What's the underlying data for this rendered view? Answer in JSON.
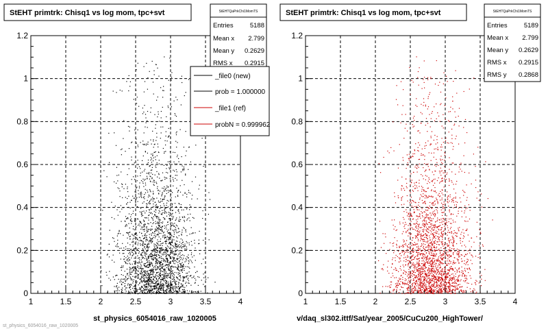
{
  "colors": {
    "background": "#ffffff",
    "frame": "#000000",
    "grid": "#000000",
    "series_new": "#000000",
    "series_ref": "#cc0000"
  },
  "footer_text": "st_physics_6054016_raw_1020005",
  "chart_data": [
    {
      "type": "scatter",
      "title": "StEHT primtrk: Chisq1 vs log mom, tpc+svt",
      "xlabel": "st_physics_6054016_raw_1020005",
      "ylabel": "",
      "xlim": [
        1,
        4
      ],
      "ylim": [
        0,
        1.2
      ],
      "x_ticks": [
        "1",
        "1.5",
        "2",
        "2.5",
        "3",
        "3.5",
        "4"
      ],
      "y_ticks": [
        "0",
        "0.2",
        "0.4",
        "0.6",
        "0.8",
        "1",
        "1.2"
      ],
      "grid": true,
      "stats": {
        "name": "StEHTQaPrkChi1MomTS",
        "rows": [
          {
            "label": "Entries",
            "value": "5188"
          },
          {
            "label": "Mean x",
            "value": "2.799"
          },
          {
            "label": "Mean y",
            "value": "0.2629"
          },
          {
            "label": "RMS x",
            "value": "0.2915"
          }
        ]
      },
      "legend": {
        "position": "top-right",
        "entries": [
          {
            "text": "_file0 (new)",
            "color": "#000000"
          },
          {
            "text": "prob = 1.000000",
            "color": "#000000"
          },
          {
            "text": "_file1 (ref)",
            "color": "#cc0000"
          },
          {
            "text": "probN = 0.999962",
            "color": "#cc0000"
          }
        ]
      },
      "series": [
        {
          "name": "_file0 (new)",
          "color": "#000000",
          "entries": 5188,
          "mean_x": 2.799,
          "mean_y": 0.2629,
          "rms_x": 0.2915,
          "rms_y": 0.2868,
          "x_range": [
            2.0,
            3.75
          ],
          "y_range": [
            0,
            1.2
          ]
        }
      ]
    },
    {
      "type": "scatter",
      "title": "StEHT primtrk: Chisq1 vs log mom, tpc+svt",
      "xlabel": "v/daq_sl302.ittf/Sat/year_2005/CuCu200_HighTower/",
      "ylabel": "",
      "xlim": [
        1,
        4
      ],
      "ylim": [
        0,
        1.2
      ],
      "x_ticks": [
        "1",
        "1.5",
        "2",
        "2.5",
        "3",
        "3.5",
        "4"
      ],
      "y_ticks": [
        "0",
        "0.2",
        "0.4",
        "0.6",
        "0.8",
        "1",
        "1.2"
      ],
      "grid": true,
      "stats": {
        "name": "StEHTQaPrkChi1MomTS",
        "rows": [
          {
            "label": "Entries",
            "value": "5189"
          },
          {
            "label": "Mean x",
            "value": "2.799"
          },
          {
            "label": "Mean y",
            "value": "0.2629"
          },
          {
            "label": "RMS x",
            "value": "0.2915"
          },
          {
            "label": "RMS y",
            "value": "0.2868"
          }
        ]
      },
      "series": [
        {
          "name": "_file1 (ref)",
          "color": "#cc0000",
          "entries": 5189,
          "mean_x": 2.799,
          "mean_y": 0.2629,
          "rms_x": 0.2915,
          "rms_y": 0.2868,
          "x_range": [
            2.0,
            3.75
          ],
          "y_range": [
            0,
            1.2
          ]
        }
      ]
    }
  ]
}
